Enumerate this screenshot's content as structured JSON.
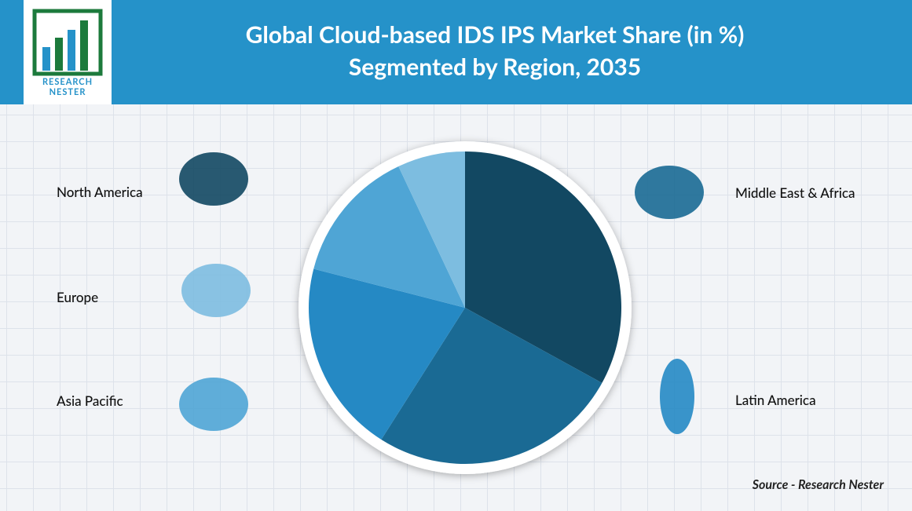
{
  "logo": [
    "RESEARCH",
    "NESTER"
  ],
  "chart_data": {
    "type": "pie",
    "title": "Global Cloud-based IDS IPS Market Share (in %) Segmented by Region, 2035",
    "categories": [
      "North America",
      "Middle East & Africa",
      "Latin America",
      "Asia Pacific",
      "Europe"
    ],
    "values": [
      33,
      26,
      20,
      14,
      7
    ],
    "colors": [
      "#124862",
      "#1a6a94",
      "#2589c4",
      "#4fa5d5",
      "#7dbde0"
    ],
    "source": "Source - Research Nester"
  }
}
